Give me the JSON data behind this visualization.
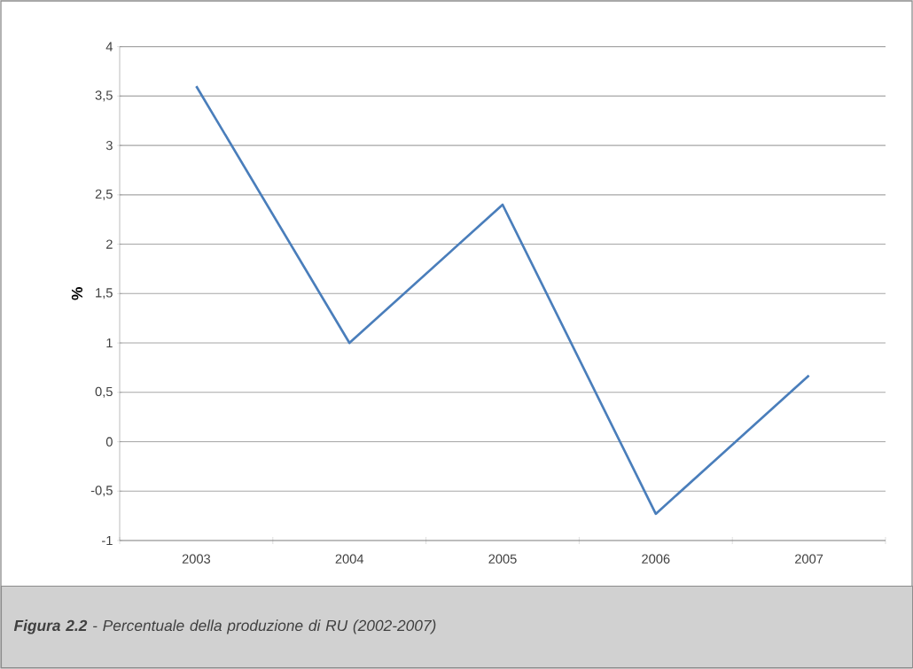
{
  "chart_data": {
    "type": "line",
    "ylabel": "%",
    "categories": [
      "2003",
      "2004",
      "2005",
      "2006",
      "2007"
    ],
    "series": [
      {
        "color": "#4a7ebb",
        "values": [
          3.6,
          1.0,
          2.4,
          -0.73,
          0.67
        ]
      }
    ],
    "ylim": [
      -1,
      4
    ],
    "yticks": [
      {
        "value": -1,
        "label": "-1"
      },
      {
        "value": -0.5,
        "label": "-0,5"
      },
      0,
      {
        "value": 0.5,
        "label": "0,5"
      },
      1,
      {
        "value": 1.5,
        "label": "1,5"
      },
      2,
      {
        "value": 2.5,
        "label": "2,5"
      },
      3,
      {
        "value": 3.5,
        "label": "3,5"
      },
      4
    ],
    "grid": "y",
    "marker": "none",
    "line_style": "solid",
    "annotations": [
      "**Figura 2.2** - Percentuale della produzione di RU (2002-2007)"
    ]
  }
}
